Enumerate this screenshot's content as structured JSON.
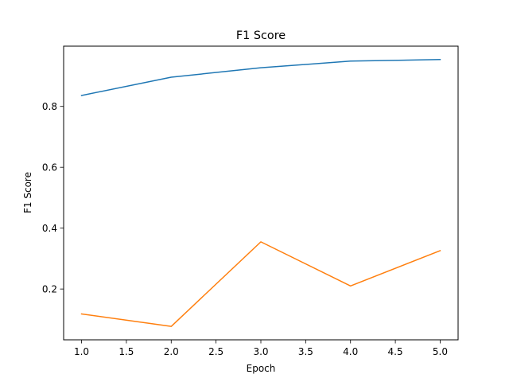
{
  "chart_data": {
    "type": "line",
    "title": "F1 Score",
    "xlabel": "Epoch",
    "ylabel": "F1 Score",
    "x": [
      1.0,
      2.0,
      3.0,
      4.0,
      5.0
    ],
    "xlim": [
      0.8,
      5.2
    ],
    "ylim": [
      0.033,
      0.998
    ],
    "xticks": [
      1.0,
      1.5,
      2.0,
      2.5,
      3.0,
      3.5,
      4.0,
      4.5,
      5.0
    ],
    "xtick_labels": [
      "1.0",
      "1.5",
      "2.0",
      "2.5",
      "3.0",
      "3.5",
      "4.0",
      "4.5",
      "5.0"
    ],
    "yticks": [
      0.2,
      0.4,
      0.6,
      0.8
    ],
    "ytick_labels": [
      "0.2",
      "0.4",
      "0.6",
      "0.8"
    ],
    "grid": false,
    "legend": false,
    "series": [
      {
        "values": [
          0.836,
          0.896,
          0.927,
          0.949,
          0.954
        ],
        "color": "#1f77b4"
      },
      {
        "values": [
          0.118,
          0.077,
          0.355,
          0.21,
          0.326
        ],
        "color": "#ff7f0e"
      }
    ]
  }
}
